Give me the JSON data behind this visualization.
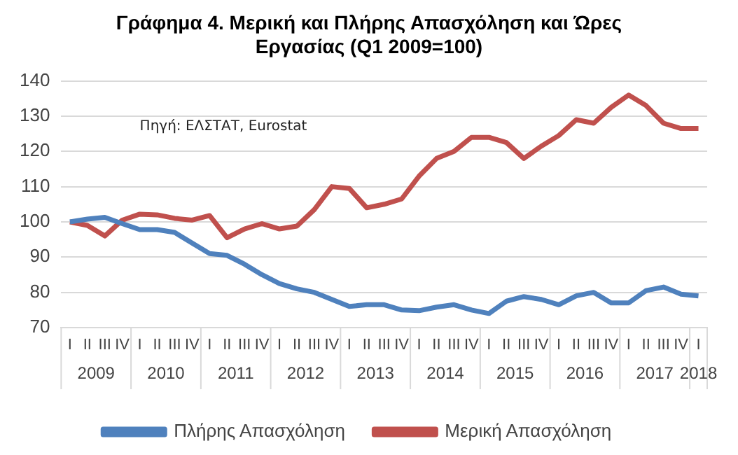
{
  "chart_data": {
    "type": "line",
    "title": "Γράφημα 4. Μερική και Πλήρης Απασχόληση και Ώρες Εργασίας (Q1 2009=100)",
    "categories": [
      "I",
      "II",
      "III",
      "IV",
      "I",
      "II",
      "III",
      "IV",
      "I",
      "II",
      "III",
      "IV",
      "I",
      "II",
      "III",
      "IV",
      "I",
      "II",
      "III",
      "IV",
      "I",
      "II",
      "III",
      "IV",
      "I",
      "II",
      "III",
      "IV",
      "I",
      "II",
      "III",
      "IV",
      "I",
      "II",
      "III",
      "IV",
      "I"
    ],
    "series": [
      {
        "name": "Πλήρης Απασχόληση",
        "color": "#4f81bd",
        "values": [
          100,
          100.8,
          101.3,
          99.5,
          97.8,
          97.8,
          97,
          94,
          91,
          90.5,
          88,
          85,
          82.5,
          81,
          80,
          78,
          76,
          76.5,
          76.5,
          75,
          74.8,
          75.8,
          76.5,
          75,
          74,
          77.5,
          78.8,
          78,
          76.5,
          79,
          80,
          77,
          77,
          80.5,
          81.5,
          79.5,
          79
        ]
      },
      {
        "name": "Μερική Απασχόληση",
        "color": "#c0504d",
        "values": [
          100,
          99,
          96,
          100.5,
          102.2,
          102,
          101,
          100.5,
          101.8,
          95.5,
          98,
          99.5,
          98,
          98.8,
          103.5,
          110,
          109.5,
          104,
          105,
          106.5,
          113,
          118,
          120,
          124,
          124,
          122.5,
          118,
          121.5,
          124.5,
          129,
          128,
          132.5,
          136,
          133,
          128,
          126.5,
          126.5
        ]
      }
    ],
    "ylim": [
      70,
      140
    ],
    "yticks": [
      70,
      80,
      90,
      100,
      110,
      120,
      130,
      140
    ],
    "grid": "y",
    "legend": "bottom",
    "marker": "none",
    "line_style": "solid",
    "annotations": [
      "Πηγή: ΕΛΣΤΑΤ, Eurostat",
      "2009",
      "2010",
      "2011",
      "2012",
      "2013",
      "2014",
      "2015",
      "2016",
      "2017",
      "2018"
    ]
  }
}
